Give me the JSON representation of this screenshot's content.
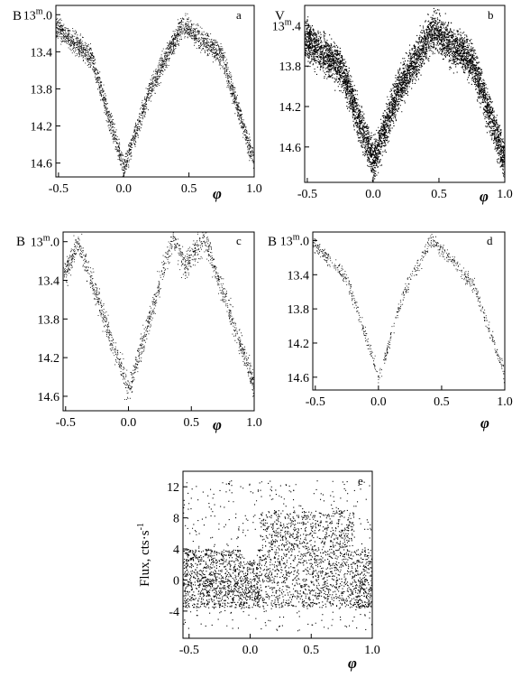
{
  "chart_data": [
    {
      "id": "a",
      "type": "scatter",
      "panel_label": "a",
      "ylabel": "B",
      "ylabel_unit": "m",
      "xlabel": "φ",
      "xlim": [
        -0.52,
        1.0
      ],
      "ylim": [
        12.9,
        14.75
      ],
      "y_inverted": true,
      "xticks": [
        "-0.5",
        "0.0",
        "0.5",
        "1.0"
      ],
      "xtick_values": [
        -0.5,
        0.0,
        0.5,
        1.0
      ],
      "yticks": [
        "13.0",
        "13.4",
        "13.8",
        "14.2",
        "14.6"
      ],
      "ytick_values": [
        13.0,
        13.4,
        13.8,
        14.2,
        14.6
      ],
      "unit_tick_index": 0,
      "curve": {
        "x": [
          -0.5,
          -0.25,
          0.0,
          0.2,
          0.45,
          0.75,
          1.0
        ],
        "y": [
          13.15,
          13.45,
          14.65,
          13.8,
          13.1,
          13.45,
          14.6
        ]
      },
      "scatter_spread": 0.1,
      "points": 2600,
      "grid": false,
      "legend": "none"
    },
    {
      "id": "b",
      "type": "scatter",
      "panel_label": "b",
      "ylabel": "V",
      "ylabel_unit": "m",
      "xlabel": "φ",
      "xlim": [
        -0.52,
        1.0
      ],
      "ylim": [
        13.2,
        14.95
      ],
      "y_inverted": true,
      "xticks": [
        "-0.5",
        "0.0",
        "0.5",
        "1.0"
      ],
      "xtick_values": [
        -0.5,
        0.0,
        0.5,
        1.0
      ],
      "yticks": [
        "13.4",
        "13.8",
        "14.2",
        "14.6"
      ],
      "ytick_values": [
        13.4,
        13.8,
        14.2,
        14.6
      ],
      "unit_tick_index": 0,
      "curve": {
        "x": [
          -0.5,
          -0.25,
          0.0,
          0.2,
          0.45,
          0.75,
          1.0
        ],
        "y": [
          13.55,
          13.8,
          14.75,
          14.0,
          13.45,
          13.75,
          14.75
        ]
      },
      "scatter_spread": 0.16,
      "points": 6000,
      "grid": false,
      "legend": "none"
    },
    {
      "id": "c",
      "type": "scatter",
      "panel_label": "c",
      "ylabel": "B",
      "ylabel_unit": "m",
      "xlabel": "φ",
      "xlim": [
        -0.52,
        1.0
      ],
      "ylim": [
        12.9,
        14.75
      ],
      "y_inverted": true,
      "xticks": [
        "-0.5",
        "0.0",
        "0.5",
        "1.0"
      ],
      "xtick_values": [
        -0.5,
        0.0,
        0.5,
        1.0
      ],
      "yticks": [
        "13.0",
        "13.4",
        "13.8",
        "14.2",
        "14.6"
      ],
      "ytick_values": [
        13.0,
        13.4,
        13.8,
        14.2,
        14.6
      ],
      "unit_tick_index": 0,
      "curve": {
        "x": [
          -0.5,
          -0.4,
          0.0,
          0.35,
          0.45,
          0.6,
          1.0
        ],
        "y": [
          13.3,
          13.0,
          14.55,
          12.95,
          13.25,
          12.95,
          14.5
        ]
      },
      "scatter_spread": 0.08,
      "points": 1400,
      "grid": false,
      "legend": "none"
    },
    {
      "id": "d",
      "type": "scatter",
      "panel_label": "d",
      "ylabel": "B",
      "ylabel_unit": "m",
      "xlabel": "φ",
      "xlim": [
        -0.52,
        1.0
      ],
      "ylim": [
        12.9,
        14.75
      ],
      "y_inverted": true,
      "xticks": [
        "-0.5",
        "0.0",
        "0.5",
        "1.0"
      ],
      "xtick_values": [
        -0.5,
        0.0,
        0.5,
        1.0
      ],
      "yticks": [
        "13.0",
        "13.4",
        "13.8",
        "14.2",
        "14.6"
      ],
      "ytick_values": [
        13.0,
        13.4,
        13.8,
        14.2,
        14.6
      ],
      "unit_tick_index": 0,
      "curve": {
        "x": [
          -0.5,
          -0.25,
          0.0,
          0.2,
          0.42,
          0.75,
          1.0
        ],
        "y": [
          13.05,
          13.45,
          14.6,
          13.6,
          12.98,
          13.5,
          14.6
        ]
      },
      "scatter_spread": 0.07,
      "points": 700,
      "grid": false,
      "legend": "none"
    },
    {
      "id": "e",
      "type": "scatter",
      "panel_label": "e",
      "ylabel": "Flux, cts·s",
      "ylabel_sup": "-1",
      "xlabel": "φ",
      "xlim": [
        -0.55,
        1.0
      ],
      "ylim": [
        -7.5,
        14.0
      ],
      "y_inverted": false,
      "xticks": [
        "-0.5",
        "0.0",
        "0.5",
        "1.0"
      ],
      "xtick_values": [
        -0.5,
        0.0,
        0.5,
        1.0
      ],
      "yticks": [
        "12",
        "8",
        "4",
        "0",
        "-4"
      ],
      "ytick_values": [
        12,
        8,
        4,
        0,
        -4
      ],
      "dense_band": [
        -3.5,
        4.0
      ],
      "high_band_phase": [
        0.08,
        0.85
      ],
      "high_band_top": 9.0,
      "points": 7000,
      "grid": false,
      "legend": "none"
    }
  ]
}
